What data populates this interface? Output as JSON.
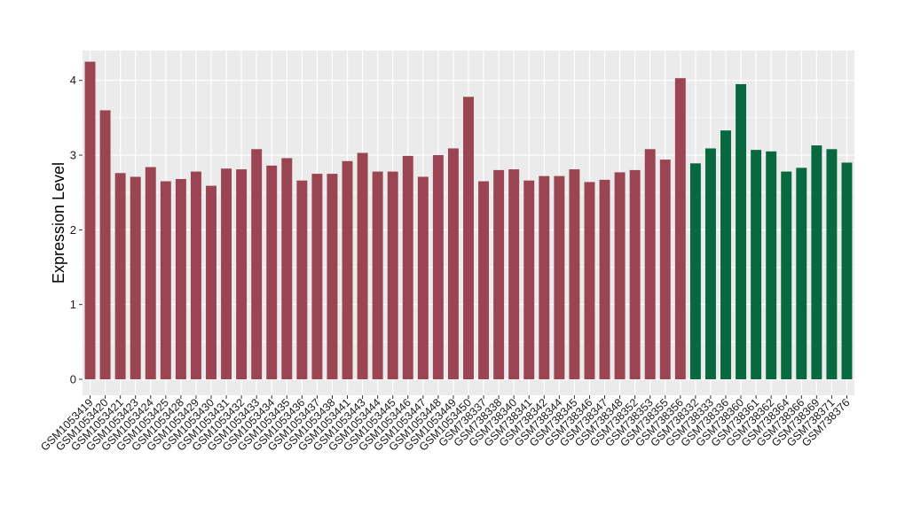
{
  "chart_data": {
    "type": "bar",
    "title": "",
    "xlabel": "",
    "ylabel": "Expression Level",
    "ylim": [
      0,
      4.4
    ],
    "yticks": [
      0,
      1,
      2,
      3,
      4
    ],
    "grid": true,
    "legend": "none",
    "colors": {
      "group1": "#9b4452",
      "group2": "#08683f",
      "panel": "#ebebeb",
      "grid": "#ffffff"
    },
    "categories": [
      "GSM1053419",
      "GSM1053420",
      "GSM1053421",
      "GSM1053423",
      "GSM1053424",
      "GSM1053425",
      "GSM1053428",
      "GSM1053429",
      "GSM1053430",
      "GSM1053431",
      "GSM1053432",
      "GSM1053433",
      "GSM1053434",
      "GSM1053435",
      "GSM1053436",
      "GSM1053437",
      "GSM1053438",
      "GSM1053441",
      "GSM1053443",
      "GSM1053444",
      "GSM1053445",
      "GSM1053446",
      "GSM1053447",
      "GSM1053448",
      "GSM1053449",
      "GSM1053450",
      "GSM738337",
      "GSM738338",
      "GSM738340",
      "GSM738341",
      "GSM738342",
      "GSM738344",
      "GSM738345",
      "GSM738346",
      "GSM738347",
      "GSM738348",
      "GSM738352",
      "GSM738353",
      "GSM738355",
      "GSM738356",
      "GSM738332",
      "GSM738333",
      "GSM738336",
      "GSM738360",
      "GSM738361",
      "GSM738362",
      "GSM738364",
      "GSM738366",
      "GSM738369",
      "GSM738371",
      "GSM738376"
    ],
    "values": [
      4.25,
      3.6,
      2.76,
      2.71,
      2.84,
      2.65,
      2.68,
      2.78,
      2.59,
      2.82,
      2.81,
      3.08,
      2.86,
      2.96,
      2.66,
      2.75,
      2.75,
      2.92,
      3.03,
      2.78,
      2.78,
      2.99,
      2.71,
      3.0,
      3.09,
      3.78,
      2.65,
      2.8,
      2.81,
      2.66,
      2.72,
      2.72,
      2.81,
      2.64,
      2.67,
      2.77,
      2.8,
      3.08,
      2.94,
      4.03,
      2.89,
      3.09,
      3.33,
      3.95,
      3.07,
      3.05,
      2.78,
      2.83,
      3.13,
      3.08,
      2.9
    ],
    "groups": [
      1,
      1,
      1,
      1,
      1,
      1,
      1,
      1,
      1,
      1,
      1,
      1,
      1,
      1,
      1,
      1,
      1,
      1,
      1,
      1,
      1,
      1,
      1,
      1,
      1,
      1,
      1,
      1,
      1,
      1,
      1,
      1,
      1,
      1,
      1,
      1,
      1,
      1,
      1,
      1,
      2,
      2,
      2,
      2,
      2,
      2,
      2,
      2,
      2,
      2,
      2
    ]
  }
}
